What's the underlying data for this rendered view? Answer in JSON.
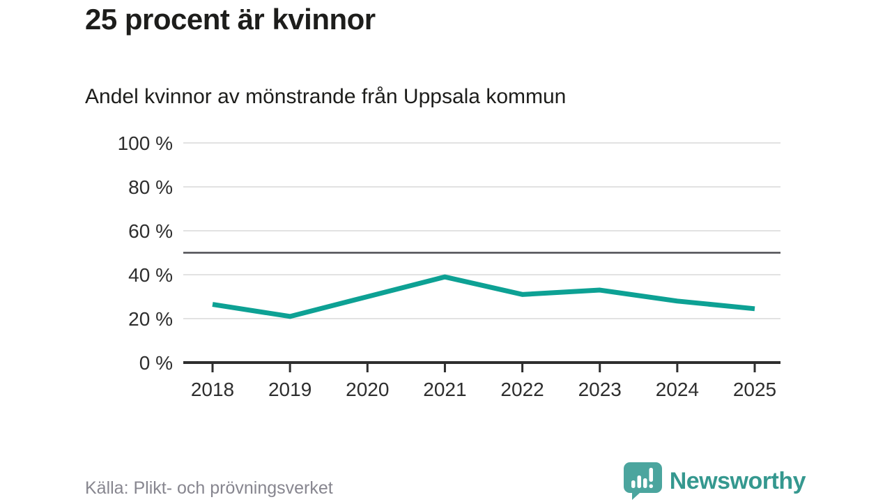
{
  "header": {
    "title": "25 procent är kvinnor",
    "subtitle": "Andel kvinnor av mönstrande från Uppsala kommun"
  },
  "footer": {
    "source": "Källa: Plikt- och prövningsverket",
    "brand": "Newsworthy"
  },
  "colors": {
    "line": "#0da194",
    "grid": "#e2e2e2",
    "reference_line": "#4d4d52",
    "axis": "#2e2e2e",
    "logo_bubble": "#4ba59e",
    "logo_text": "#35988f",
    "title_text": "#1d1d1b",
    "source_text": "#87868f"
  },
  "chart_data": {
    "type": "line",
    "title": "25 procent är kvinnor",
    "subtitle": "Andel kvinnor av mönstrande från Uppsala kommun",
    "categories": [
      "2018",
      "2019",
      "2020",
      "2021",
      "2022",
      "2023",
      "2024",
      "2025"
    ],
    "series": [
      {
        "name": "Andel kvinnor av mönstrande",
        "values": [
          26.5,
          21,
          30,
          39,
          31,
          33,
          28,
          24.5
        ]
      }
    ],
    "ylim": [
      0,
      100
    ],
    "yticks": [
      0,
      20,
      40,
      60,
      80,
      100
    ],
    "ytick_labels": [
      "0 %",
      "20 %",
      "40 %",
      "60 %",
      "80 %",
      "100 %"
    ],
    "reference_line": 50,
    "grid": "horizontal",
    "legend_position": "none",
    "unit": "percent"
  }
}
